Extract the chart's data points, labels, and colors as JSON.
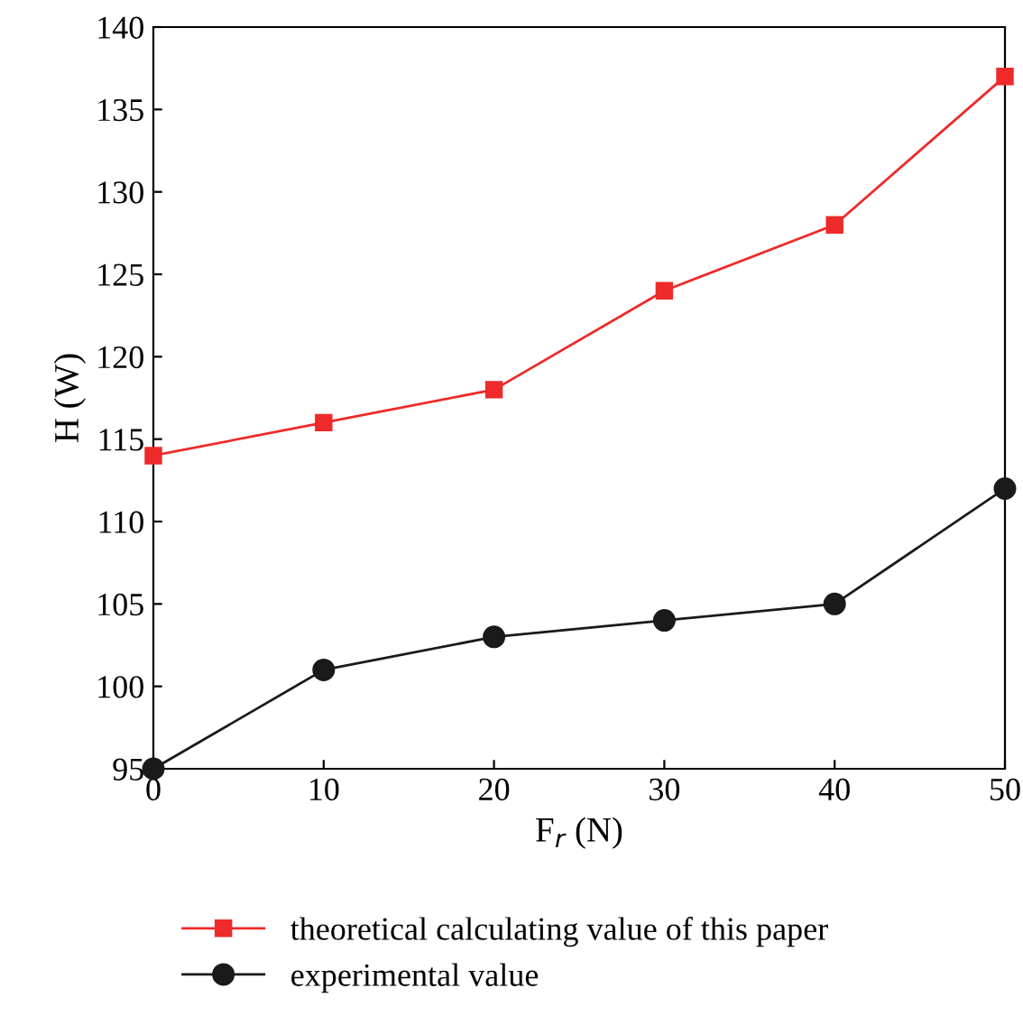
{
  "chart_data": {
    "type": "line",
    "xlabel": "F$_{r}$ (N)",
    "ylabel": "H (W)",
    "x": [
      0,
      10,
      20,
      30,
      40,
      50
    ],
    "series": [
      {
        "name": "theoretical calculating value of this paper",
        "color": "#ee2a2a",
        "marker": "square",
        "values": [
          114,
          116,
          118,
          124,
          128,
          137
        ]
      },
      {
        "name": "experimental value",
        "color": "#1a1a1a",
        "marker": "circle",
        "values": [
          95,
          101,
          103,
          104,
          105,
          112
        ]
      }
    ],
    "xlim": [
      0,
      50
    ],
    "xticks": [
      0,
      10,
      20,
      30,
      40,
      50
    ],
    "ylim": [
      95,
      140
    ],
    "yticks": [
      95,
      100,
      105,
      110,
      115,
      120,
      125,
      130,
      135,
      140
    ],
    "grid": false,
    "legend": "bottom",
    "line_style": "solid"
  }
}
